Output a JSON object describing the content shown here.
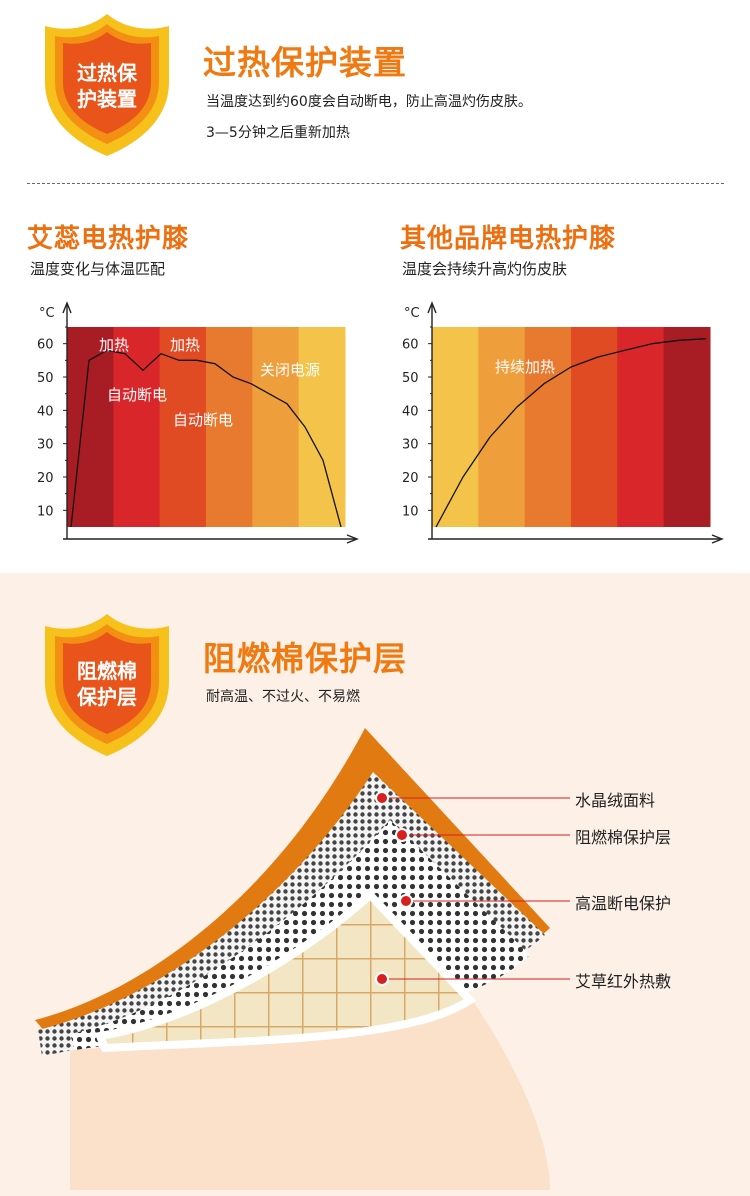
{
  "section1": {
    "badge": [
      "过热保",
      "护装置"
    ],
    "title": "过热保护装置",
    "lines": [
      "当温度达到约60度会自动断电，防止高温灼伤皮肤。",
      "3—5分钟之后重新加热"
    ]
  },
  "left": {
    "title": "艾蕊电热护膝",
    "desc": "温度变化与体温匹配",
    "unit": "°C",
    "annotations": [
      "加热",
      "加热",
      "自动断电",
      "自动断电",
      "关闭电源"
    ]
  },
  "right": {
    "title": "其他品牌电热护膝",
    "desc": "温度会持续升高灼伤皮肤",
    "unit": "°C",
    "annotations": [
      "持续加热"
    ]
  },
  "chart_data": [
    {
      "type": "line",
      "title": "",
      "xlabel": "",
      "ylabel": "°C",
      "y_ticks": [
        "60",
        "50",
        "40",
        "30",
        "20",
        "10"
      ],
      "ylim": [
        5,
        65
      ],
      "series": [
        {
          "values": [
            5,
            55,
            58,
            57,
            52,
            57,
            55,
            55,
            54,
            50,
            48,
            45,
            42,
            35,
            25,
            5
          ]
        }
      ],
      "band_colors": [
        "#a81c24",
        "#d9262a",
        "#e04b24",
        "#e87a30",
        "#ef9e3c",
        "#f4c44a"
      ]
    },
    {
      "type": "line",
      "title": "",
      "xlabel": "",
      "ylabel": "°C",
      "y_ticks": [
        "60",
        "50",
        "40",
        "30",
        "20",
        "10"
      ],
      "ylim": [
        5,
        65
      ],
      "series": [
        {
          "values": [
            5,
            20,
            32,
            41,
            48,
            53,
            56,
            58,
            60,
            61,
            61.5
          ]
        }
      ],
      "band_colors": [
        "#f4c44a",
        "#ef9e3c",
        "#e87a30",
        "#e04b24",
        "#d9262a",
        "#a81c24"
      ]
    }
  ],
  "section2": {
    "badge": [
      "阻燃棉",
      "保护层"
    ],
    "title": "阻燃棉保护层",
    "desc": "耐高温、不过火、不易燃",
    "layers": [
      "水晶绒面料",
      "阻燃棉保护层",
      "高温断电保护",
      "艾草红外热敷"
    ]
  }
}
